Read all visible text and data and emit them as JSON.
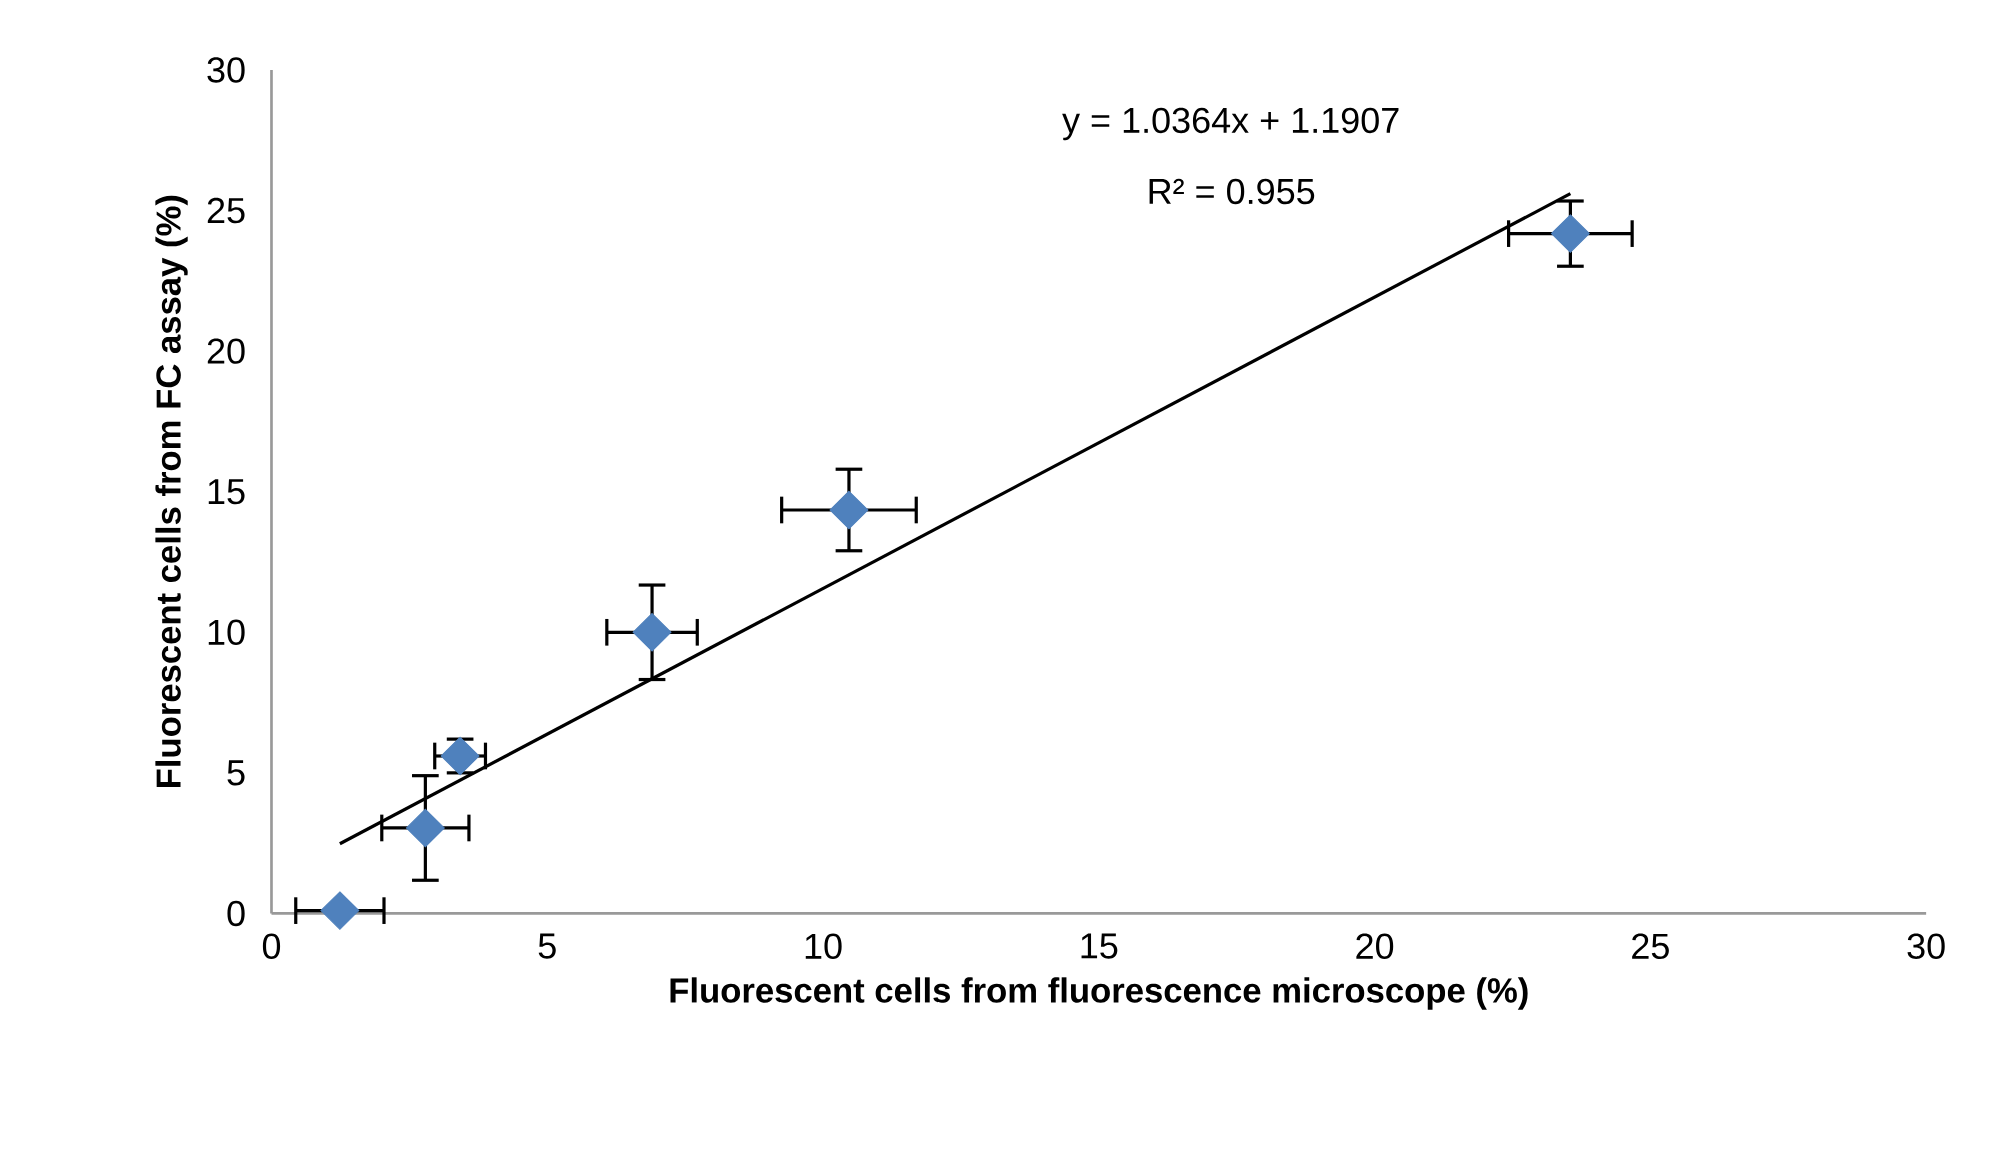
{
  "chart_data": {
    "type": "scatter",
    "xlabel": "Fluorescent cells from fluorescence microscope (%)",
    "ylabel": "Fluorescent cells from FC assay (%)",
    "xlim": [
      0,
      30
    ],
    "ylim": [
      0,
      30
    ],
    "xticks": [
      0,
      5,
      10,
      15,
      20,
      25,
      30
    ],
    "yticks": [
      0,
      5,
      10,
      15,
      20,
      25,
      30
    ],
    "marker": "diamond",
    "annotations": [
      "y = 1.0364x + 1.1907",
      "R² = 0.955"
    ],
    "series": [
      {
        "color": "#4f81bd",
        "x": [
          1.24,
          2.79,
          3.42,
          6.9,
          10.47,
          23.55
        ],
        "values": [
          0.1,
          3.04,
          5.6,
          10.0,
          14.35,
          24.18
        ],
        "errors": [
          null,
          1.86,
          0.6,
          1.68,
          1.45,
          1.16
        ],
        "xerrors": [
          0.8,
          0.79,
          0.46,
          0.82,
          1.22,
          1.12
        ]
      },
      {
        "type": "line",
        "marker": "none",
        "color": "#000000",
        "x": [
          1.24,
          23.55
        ],
        "values": [
          2.48,
          25.6
        ]
      }
    ]
  }
}
